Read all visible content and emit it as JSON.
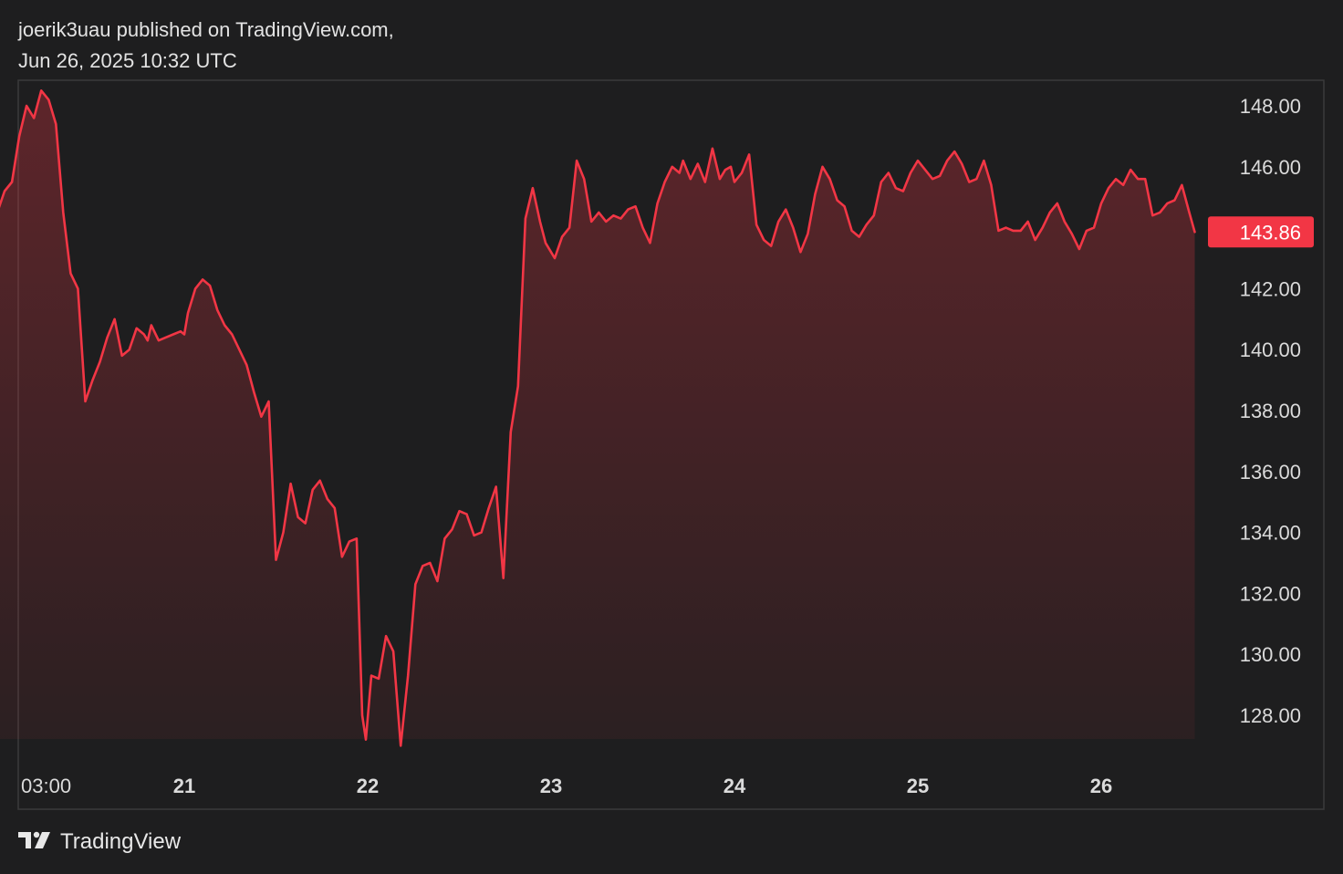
{
  "header": {
    "publisher_line": "joerik3uau published on TradingView.com,",
    "timestamp_line": "Jun 26, 2025 10:32 UTC"
  },
  "footer": {
    "brand": "TradingView",
    "brand_icon": "tradingview-logo-icon"
  },
  "colors": {
    "line": "#f23645",
    "price_badge_bg": "#f23645",
    "background": "#1e1e1f",
    "border": "#3a3a3b",
    "text": "#dbdbdb"
  },
  "chart_data": {
    "type": "area",
    "title": "",
    "xlabel": "",
    "ylabel": "",
    "ylim": [
      126.5,
      149.0
    ],
    "y_ticks": [
      "148.00",
      "146.00",
      "144.00",
      "142.00",
      "140.00",
      "138.00",
      "136.00",
      "134.00",
      "132.00",
      "130.00",
      "128.00"
    ],
    "x_ticks": [
      {
        "label": "03:00",
        "x": 0.2
      },
      {
        "label": "21",
        "x": 1.0
      },
      {
        "label": "22",
        "x": 2.0
      },
      {
        "label": "23",
        "x": 3.0
      },
      {
        "label": "24",
        "x": 4.0
      },
      {
        "label": "25",
        "x": 5.0
      },
      {
        "label": "26",
        "x": 6.0
      }
    ],
    "x_unit": "days from Jun 20 00:00",
    "xlim": [
      -0.18,
      6.55
    ],
    "last_price": "143.86",
    "last_price_value": 143.86,
    "grid": false,
    "series": [
      {
        "name": "",
        "x": [
          -0.18,
          -0.14,
          -0.1,
          -0.06,
          -0.02,
          0.02,
          0.06,
          0.1,
          0.14,
          0.18,
          0.22,
          0.26,
          0.3,
          0.34,
          0.38,
          0.42,
          0.46,
          0.5,
          0.54,
          0.58,
          0.62,
          0.66,
          0.7,
          0.74,
          0.78,
          0.8,
          0.82,
          0.86,
          0.9,
          0.94,
          0.98,
          1.0,
          1.02,
          1.06,
          1.1,
          1.14,
          1.18,
          1.22,
          1.26,
          1.3,
          1.34,
          1.38,
          1.42,
          1.46,
          1.5,
          1.54,
          1.58,
          1.62,
          1.66,
          1.7,
          1.74,
          1.78,
          1.82,
          1.86,
          1.9,
          1.94,
          1.97,
          1.99,
          2.02,
          2.06,
          2.1,
          2.14,
          2.18,
          2.22,
          2.26,
          2.3,
          2.34,
          2.38,
          2.42,
          2.46,
          2.5,
          2.54,
          2.58,
          2.62,
          2.66,
          2.7,
          2.74,
          2.78,
          2.82,
          2.86,
          2.9,
          2.94,
          2.97,
          3.0,
          3.02,
          3.06,
          3.1,
          3.14,
          3.18,
          3.22,
          3.26,
          3.3,
          3.34,
          3.38,
          3.42,
          3.46,
          3.5,
          3.54,
          3.58,
          3.62,
          3.66,
          3.7,
          3.72,
          3.76,
          3.8,
          3.84,
          3.88,
          3.92,
          3.95,
          3.98,
          4.0,
          4.04,
          4.08,
          4.12,
          4.16,
          4.2,
          4.24,
          4.28,
          4.32,
          4.36,
          4.4,
          4.44,
          4.48,
          4.52,
          4.56,
          4.6,
          4.64,
          4.68,
          4.72,
          4.76,
          4.8,
          4.84,
          4.88,
          4.92,
          4.96,
          5.0,
          5.04,
          5.08,
          5.12,
          5.16,
          5.2,
          5.24,
          5.28,
          5.32,
          5.36,
          5.4,
          5.44,
          5.48,
          5.52,
          5.56,
          5.6,
          5.64,
          5.68,
          5.72,
          5.76,
          5.8,
          5.84,
          5.88,
          5.92,
          5.96,
          6.0,
          6.04,
          6.08,
          6.12,
          6.16,
          6.2,
          6.24,
          6.28,
          6.32,
          6.36,
          6.4,
          6.44,
          6.48,
          6.51
        ],
        "values": [
          146.9,
          146.5,
          145.6,
          145.2,
          144.5,
          145.2,
          145.5,
          147.0,
          148.0,
          147.6,
          148.5,
          148.2,
          147.4,
          144.5,
          142.5,
          142.0,
          138.3,
          139.0,
          139.6,
          140.4,
          141.0,
          139.8,
          140.0,
          140.7,
          140.5,
          140.3,
          140.8,
          140.3,
          140.4,
          140.5,
          140.6,
          140.5,
          141.2,
          142.0,
          142.3,
          142.1,
          141.3,
          140.8,
          140.5,
          140.0,
          139.5,
          138.6,
          137.8,
          138.3,
          133.1,
          134.0,
          135.6,
          134.5,
          134.3,
          135.4,
          135.7,
          135.1,
          134.8,
          133.2,
          133.7,
          133.8,
          128.0,
          127.2,
          129.3,
          129.2,
          130.6,
          130.1,
          127.0,
          129.3,
          132.3,
          132.9,
          133.0,
          132.4,
          133.8,
          134.1,
          134.7,
          134.6,
          133.9,
          134.0,
          134.8,
          135.5,
          132.5,
          137.3,
          138.8,
          144.3,
          145.3,
          144.2,
          143.5,
          143.2,
          143.0,
          143.7,
          144.0,
          146.2,
          145.6,
          144.2,
          144.5,
          144.2,
          144.4,
          144.3,
          144.6,
          144.7,
          144.0,
          143.5,
          144.8,
          145.5,
          146.0,
          145.8,
          146.2,
          145.6,
          146.1,
          145.5,
          146.6,
          145.6,
          145.9,
          146.0,
          145.5,
          145.8,
          146.4,
          144.1,
          143.6,
          143.4,
          144.2,
          144.6,
          144.0,
          143.2,
          143.8,
          145.1,
          146.0,
          145.6,
          144.9,
          144.7,
          143.9,
          143.7,
          144.1,
          144.4,
          145.5,
          145.8,
          145.3,
          145.2,
          145.8,
          146.2,
          145.9,
          145.6,
          145.7,
          146.2,
          146.5,
          146.1,
          145.5,
          145.6,
          146.2,
          145.4,
          143.9,
          144.0,
          143.9,
          143.9,
          144.2,
          143.6,
          144.0,
          144.5,
          144.8,
          144.2,
          143.8,
          143.3,
          143.9,
          144.0,
          144.8,
          145.3,
          145.6,
          145.4,
          145.9,
          145.6,
          145.6,
          144.4,
          144.5,
          144.8,
          144.9,
          145.4,
          144.5,
          143.86
        ]
      }
    ]
  }
}
